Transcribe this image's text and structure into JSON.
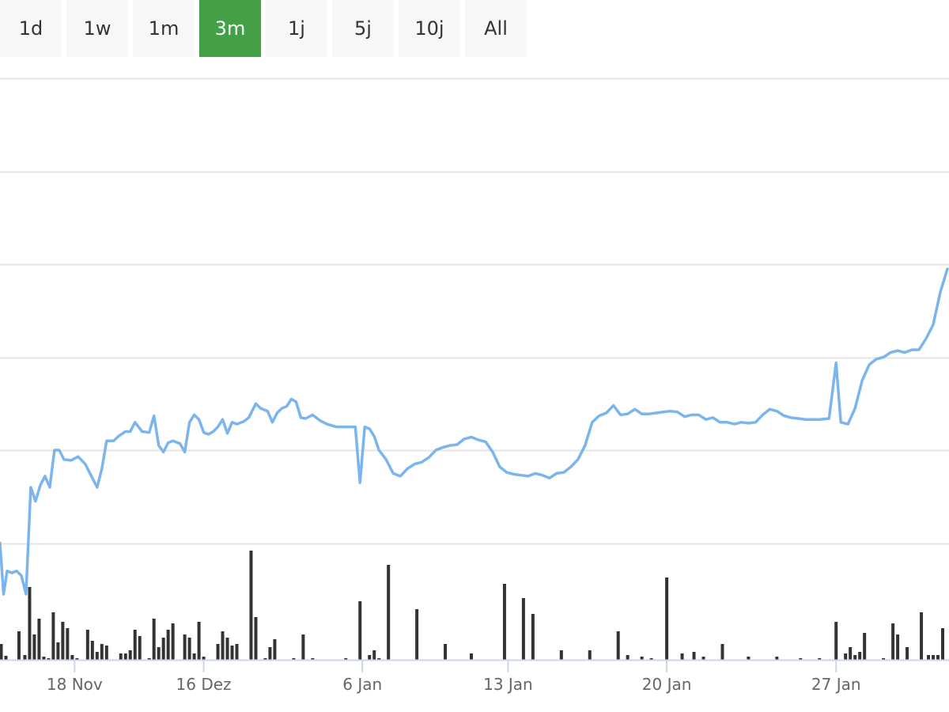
{
  "range_selector": {
    "buttons": [
      {
        "label": "1d"
      },
      {
        "label": "1w"
      },
      {
        "label": "1m"
      },
      {
        "label": "3m"
      },
      {
        "label": "1j"
      },
      {
        "label": "5j"
      },
      {
        "label": "10j"
      },
      {
        "label": "All"
      }
    ],
    "active": "3m"
  },
  "colors": {
    "line": "#7cb5ec",
    "volume": "#333333",
    "active_tab": "#43a047",
    "gridline": "#e6e6e6",
    "axis": "#ccd6eb"
  },
  "chart_data": {
    "type": "line",
    "title": "",
    "xlabel": "",
    "ylabel": "",
    "y_ticks_labeled": false,
    "ylim": [
      0,
      6
    ],
    "grid": true,
    "legend": "none",
    "x_ticks": [
      {
        "label": "18 Nov",
        "x": 3.15
      },
      {
        "label": "16 Dez",
        "x": 8.6
      },
      {
        "label": "6 Jan",
        "x": 15.3
      },
      {
        "label": "13 Jan",
        "x": 21.45
      },
      {
        "label": "20 Jan",
        "x": 28.15
      },
      {
        "label": "27 Jan",
        "x": 35.3
      }
    ],
    "xlim": [
      0,
      40
    ],
    "series": [
      {
        "values": [
          [
            0.0,
            1.0
          ],
          [
            0.15,
            0.45
          ],
          [
            0.3,
            0.7
          ],
          [
            0.5,
            0.68
          ],
          [
            0.7,
            0.7
          ],
          [
            0.9,
            0.65
          ],
          [
            1.1,
            0.45
          ],
          [
            1.3,
            1.6
          ],
          [
            1.5,
            1.45
          ],
          [
            1.7,
            1.62
          ],
          [
            1.9,
            1.72
          ],
          [
            2.1,
            1.6
          ],
          [
            2.3,
            2.0
          ],
          [
            2.5,
            2.0
          ],
          [
            2.7,
            1.9
          ],
          [
            3.0,
            1.89
          ],
          [
            3.3,
            1.93
          ],
          [
            3.6,
            1.85
          ],
          [
            3.8,
            1.75
          ],
          [
            4.1,
            1.6
          ],
          [
            4.3,
            1.8
          ],
          [
            4.5,
            2.1
          ],
          [
            4.8,
            2.1
          ],
          [
            5.0,
            2.15
          ],
          [
            5.3,
            2.2
          ],
          [
            5.5,
            2.2
          ],
          [
            5.7,
            2.3
          ],
          [
            6.0,
            2.2
          ],
          [
            6.3,
            2.19
          ],
          [
            6.5,
            2.37
          ],
          [
            6.7,
            2.05
          ],
          [
            6.9,
            1.98
          ],
          [
            7.1,
            2.08
          ],
          [
            7.3,
            2.1
          ],
          [
            7.6,
            2.07
          ],
          [
            7.8,
            1.98
          ],
          [
            8.0,
            2.3
          ],
          [
            8.2,
            2.38
          ],
          [
            8.4,
            2.33
          ],
          [
            8.6,
            2.19
          ],
          [
            8.8,
            2.17
          ],
          [
            9.0,
            2.2
          ],
          [
            9.2,
            2.25
          ],
          [
            9.4,
            2.33
          ],
          [
            9.6,
            2.18
          ],
          [
            9.8,
            2.3
          ],
          [
            10.0,
            2.28
          ],
          [
            10.3,
            2.31
          ],
          [
            10.5,
            2.35
          ],
          [
            10.8,
            2.5
          ],
          [
            11.0,
            2.45
          ],
          [
            11.3,
            2.42
          ],
          [
            11.5,
            2.3
          ],
          [
            11.7,
            2.4
          ],
          [
            11.9,
            2.45
          ],
          [
            12.1,
            2.47
          ],
          [
            12.3,
            2.55
          ],
          [
            12.5,
            2.52
          ],
          [
            12.7,
            2.35
          ],
          [
            12.9,
            2.34
          ],
          [
            13.2,
            2.38
          ],
          [
            13.5,
            2.32
          ],
          [
            13.8,
            2.28
          ],
          [
            14.2,
            2.25
          ],
          [
            14.6,
            2.25
          ],
          [
            15.0,
            2.25
          ],
          [
            15.2,
            1.65
          ],
          [
            15.4,
            2.25
          ],
          [
            15.6,
            2.23
          ],
          [
            15.8,
            2.15
          ],
          [
            16.0,
            2.0
          ],
          [
            16.3,
            1.9
          ],
          [
            16.6,
            1.75
          ],
          [
            16.9,
            1.72
          ],
          [
            17.2,
            1.8
          ],
          [
            17.5,
            1.85
          ],
          [
            17.8,
            1.87
          ],
          [
            18.1,
            1.92
          ],
          [
            18.4,
            2.0
          ],
          [
            18.7,
            2.03
          ],
          [
            19.0,
            2.05
          ],
          [
            19.3,
            2.06
          ],
          [
            19.6,
            2.12
          ],
          [
            19.9,
            2.14
          ],
          [
            20.2,
            2.11
          ],
          [
            20.5,
            2.09
          ],
          [
            20.8,
            1.98
          ],
          [
            21.1,
            1.82
          ],
          [
            21.4,
            1.76
          ],
          [
            21.7,
            1.74
          ],
          [
            22.0,
            1.73
          ],
          [
            22.3,
            1.72
          ],
          [
            22.6,
            1.75
          ],
          [
            22.9,
            1.73
          ],
          [
            23.2,
            1.7
          ],
          [
            23.5,
            1.75
          ],
          [
            23.8,
            1.76
          ],
          [
            24.1,
            1.82
          ],
          [
            24.4,
            1.9
          ],
          [
            24.7,
            2.05
          ],
          [
            25.0,
            2.3
          ],
          [
            25.3,
            2.37
          ],
          [
            25.6,
            2.4
          ],
          [
            25.9,
            2.48
          ],
          [
            26.2,
            2.38
          ],
          [
            26.5,
            2.39
          ],
          [
            26.8,
            2.44
          ],
          [
            27.1,
            2.39
          ],
          [
            27.4,
            2.39
          ],
          [
            27.7,
            2.4
          ],
          [
            28.0,
            2.41
          ],
          [
            28.3,
            2.42
          ],
          [
            28.6,
            2.41
          ],
          [
            28.9,
            2.36
          ],
          [
            29.2,
            2.38
          ],
          [
            29.5,
            2.38
          ],
          [
            29.8,
            2.33
          ],
          [
            30.1,
            2.35
          ],
          [
            30.4,
            2.3
          ],
          [
            30.7,
            2.3
          ],
          [
            31.0,
            2.28
          ],
          [
            31.3,
            2.3
          ],
          [
            31.6,
            2.29
          ],
          [
            31.9,
            2.3
          ],
          [
            32.2,
            2.38
          ],
          [
            32.5,
            2.44
          ],
          [
            32.8,
            2.42
          ],
          [
            33.1,
            2.37
          ],
          [
            33.4,
            2.35
          ],
          [
            33.7,
            2.34
          ],
          [
            34.0,
            2.33
          ],
          [
            34.3,
            2.33
          ],
          [
            34.6,
            2.33
          ],
          [
            35.0,
            2.34
          ],
          [
            35.3,
            2.94
          ],
          [
            35.5,
            2.3
          ],
          [
            35.8,
            2.28
          ],
          [
            36.1,
            2.45
          ],
          [
            36.4,
            2.75
          ],
          [
            36.7,
            2.92
          ],
          [
            37.0,
            2.98
          ],
          [
            37.3,
            3.0
          ],
          [
            37.6,
            3.05
          ],
          [
            37.9,
            3.07
          ],
          [
            38.2,
            3.05
          ],
          [
            38.5,
            3.08
          ],
          [
            38.8,
            3.08
          ],
          [
            39.1,
            3.2
          ],
          [
            39.4,
            3.35
          ],
          [
            39.7,
            3.7
          ],
          [
            40.0,
            3.95
          ]
        ]
      }
    ],
    "volume": {
      "ymax": 140,
      "values": [
        [
          0.05,
          20
        ],
        [
          0.25,
          5
        ],
        [
          0.8,
          36
        ],
        [
          1.05,
          6
        ],
        [
          1.25,
          92
        ],
        [
          1.45,
          32
        ],
        [
          1.65,
          52
        ],
        [
          1.85,
          4
        ],
        [
          2.05,
          2
        ],
        [
          2.25,
          60
        ],
        [
          2.45,
          22
        ],
        [
          2.65,
          48
        ],
        [
          2.85,
          40
        ],
        [
          3.05,
          6
        ],
        [
          3.25,
          2
        ],
        [
          3.7,
          38
        ],
        [
          3.9,
          24
        ],
        [
          4.1,
          10
        ],
        [
          4.3,
          20
        ],
        [
          4.5,
          18
        ],
        [
          5.1,
          8
        ],
        [
          5.3,
          8
        ],
        [
          5.5,
          12
        ],
        [
          5.7,
          38
        ],
        [
          5.9,
          30
        ],
        [
          6.3,
          2
        ],
        [
          6.5,
          52
        ],
        [
          6.7,
          16
        ],
        [
          6.9,
          28
        ],
        [
          7.1,
          38
        ],
        [
          7.3,
          46
        ],
        [
          7.8,
          32
        ],
        [
          8.0,
          28
        ],
        [
          8.2,
          8
        ],
        [
          8.4,
          48
        ],
        [
          8.6,
          4
        ],
        [
          9.2,
          20
        ],
        [
          9.4,
          36
        ],
        [
          9.6,
          28
        ],
        [
          9.8,
          18
        ],
        [
          10.0,
          20
        ],
        [
          10.6,
          138
        ],
        [
          10.8,
          54
        ],
        [
          11.2,
          2
        ],
        [
          11.4,
          16
        ],
        [
          11.6,
          26
        ],
        [
          12.4,
          2
        ],
        [
          12.8,
          32
        ],
        [
          13.2,
          2
        ],
        [
          14.6,
          2
        ],
        [
          15.2,
          74
        ],
        [
          15.6,
          6
        ],
        [
          15.8,
          12
        ],
        [
          16.0,
          2
        ],
        [
          16.4,
          120
        ],
        [
          17.6,
          64
        ],
        [
          18.8,
          20
        ],
        [
          19.9,
          8
        ],
        [
          21.3,
          96
        ],
        [
          22.1,
          78
        ],
        [
          22.5,
          58
        ],
        [
          23.7,
          12
        ],
        [
          24.9,
          12
        ],
        [
          26.1,
          36
        ],
        [
          26.5,
          6
        ],
        [
          27.1,
          4
        ],
        [
          27.5,
          2
        ],
        [
          28.15,
          104
        ],
        [
          28.8,
          8
        ],
        [
          29.3,
          10
        ],
        [
          29.7,
          4
        ],
        [
          30.5,
          20
        ],
        [
          31.6,
          4
        ],
        [
          32.8,
          4
        ],
        [
          33.8,
          2
        ],
        [
          34.6,
          2
        ],
        [
          35.3,
          48
        ],
        [
          35.7,
          8
        ],
        [
          35.9,
          16
        ],
        [
          36.1,
          6
        ],
        [
          36.3,
          10
        ],
        [
          36.5,
          34
        ],
        [
          37.3,
          2
        ],
        [
          37.7,
          46
        ],
        [
          37.9,
          32
        ],
        [
          38.3,
          16
        ],
        [
          38.9,
          60
        ],
        [
          39.2,
          6
        ],
        [
          39.4,
          6
        ],
        [
          39.6,
          6
        ],
        [
          39.8,
          40
        ]
      ]
    }
  }
}
